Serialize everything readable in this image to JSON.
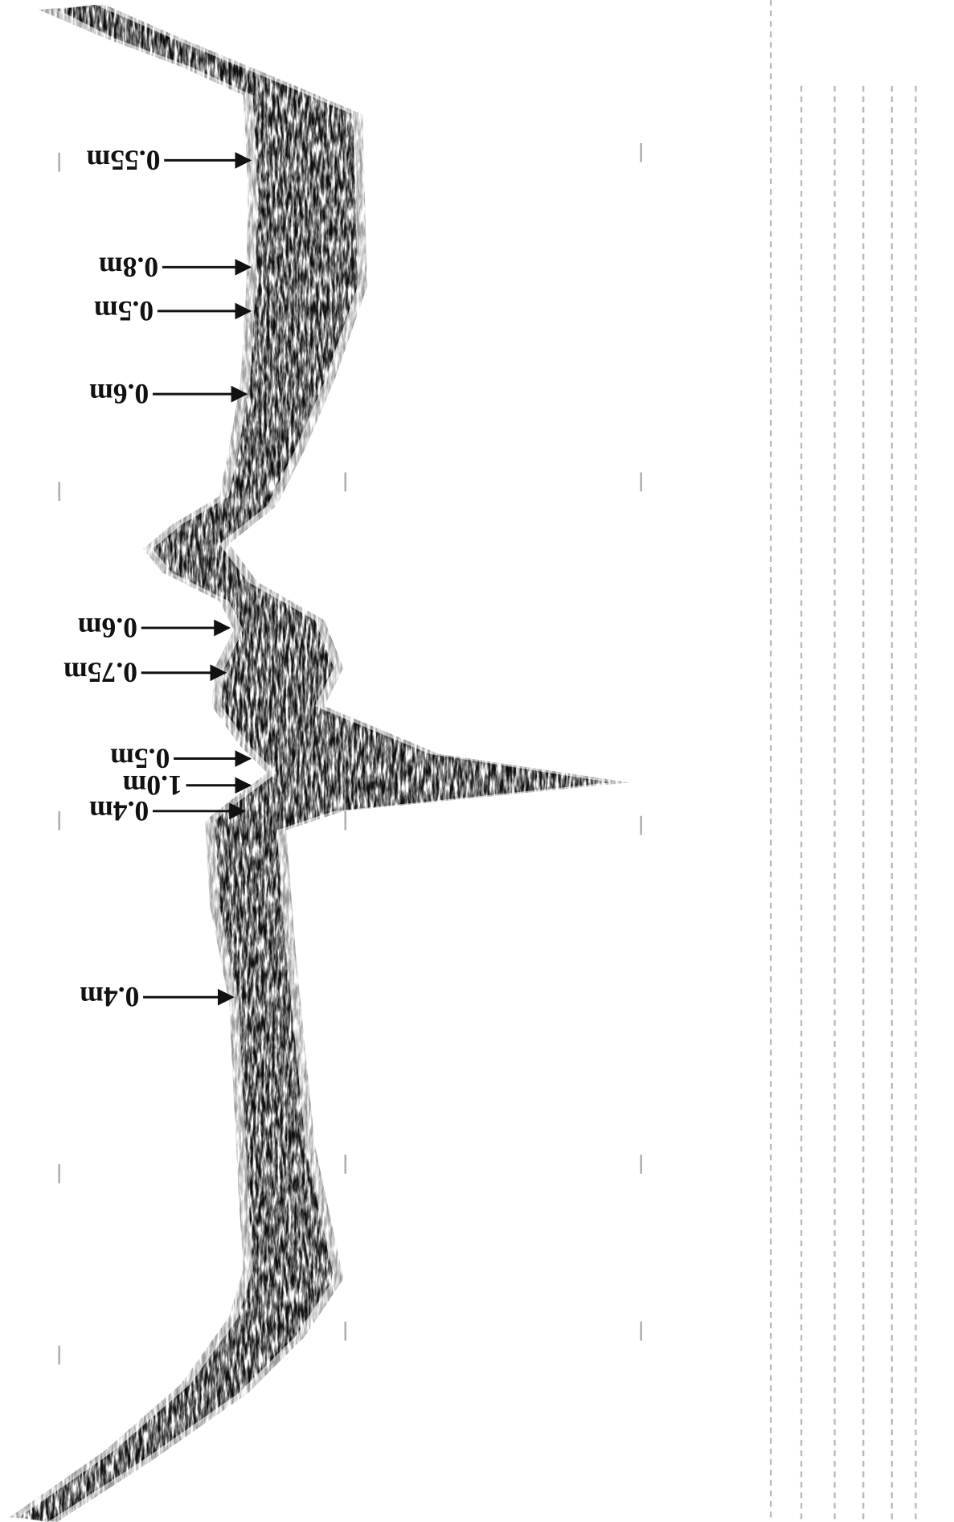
{
  "annotations": [
    {
      "label": "0.55m"
    },
    {
      "label": "0.8m"
    },
    {
      "label": "0.5m"
    },
    {
      "label": "0.6m"
    },
    {
      "label": "0.6m"
    },
    {
      "label": "0.75m"
    },
    {
      "label": "0.5m"
    },
    {
      "label": "1.0m"
    },
    {
      "label": "0.4m"
    },
    {
      "label": "0.4m"
    }
  ]
}
